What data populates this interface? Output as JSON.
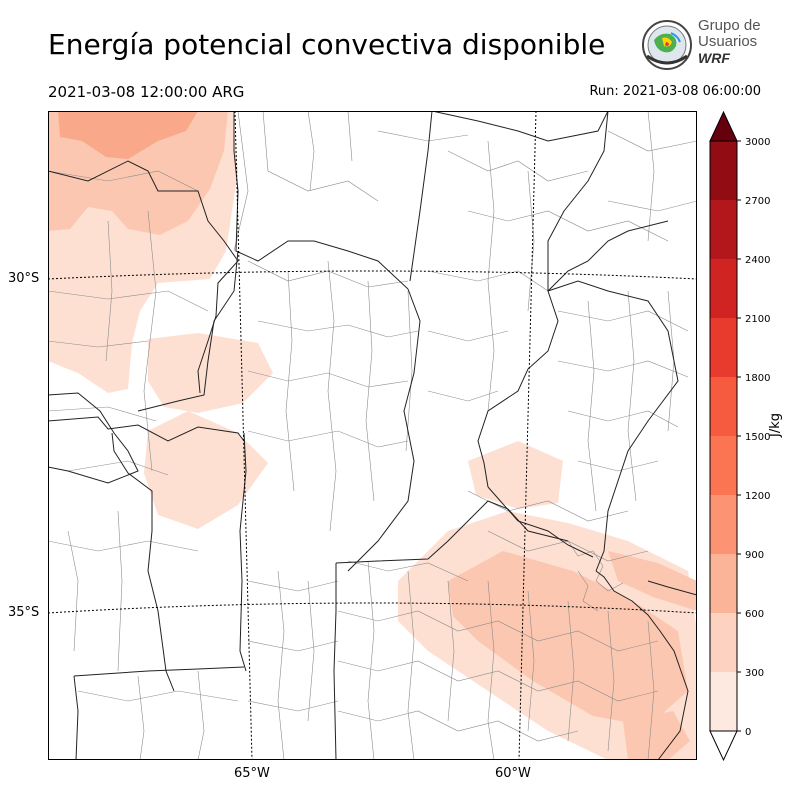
{
  "header": {
    "title": "Energía potencial convectiva disponible",
    "valid_time": "2021-03-08 12:00:00 ARG",
    "run_time": "Run: 2021-03-08 06:00:00"
  },
  "logo": {
    "line1": "Grupo de",
    "line2": "Usuarios",
    "line3": "WRF"
  },
  "map": {
    "lat_labels": [
      "30°S",
      "35°S"
    ],
    "lon_labels": [
      "65°W",
      "60°W"
    ]
  },
  "colorbar": {
    "unit": "J/kg",
    "ticks": [
      "0",
      "300",
      "600",
      "900",
      "1200",
      "1500",
      "1800",
      "2100",
      "2400",
      "2700",
      "3000"
    ],
    "colors": [
      "#fee9e1",
      "#fdd2c1",
      "#fcb499",
      "#fc9474",
      "#fb7553",
      "#f65a3f",
      "#e83b2d",
      "#d02422",
      "#b3171c",
      "#920c14",
      "#67000d"
    ],
    "extend": "both"
  },
  "colors": {
    "light": "#fde0d2",
    "mid": "#fcc7b0",
    "strong": "#f9a98a",
    "border_province": "#222222",
    "border_dept": "#8c8c8c"
  }
}
